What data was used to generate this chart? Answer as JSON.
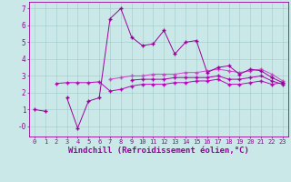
{
  "background_color": "#cbe8e8",
  "grid_color": "#a0c8c8",
  "line_color1": "#990099",
  "line_color2": "#bb00bb",
  "line_color3": "#cc44cc",
  "line_color4": "#aa00aa",
  "xlabel": "Windchill (Refroidissement éolien,°C)",
  "xlabel_fontsize": 6.5,
  "xtick_fontsize": 5.0,
  "ytick_fontsize": 5.5,
  "ylim": [
    -0.6,
    7.4
  ],
  "xlim": [
    -0.5,
    23.5
  ],
  "x": [
    0,
    1,
    2,
    3,
    4,
    5,
    6,
    7,
    8,
    9,
    10,
    11,
    12,
    13,
    14,
    15,
    16,
    17,
    18,
    19,
    20,
    21,
    22,
    23
  ],
  "line1_y": [
    1.0,
    0.9,
    null,
    1.7,
    -0.1,
    1.5,
    1.7,
    6.4,
    7.0,
    5.3,
    4.8,
    4.9,
    5.7,
    4.3,
    5.0,
    5.1,
    3.2,
    3.5,
    3.6,
    3.1,
    3.4,
    3.3,
    2.9,
    2.6
  ],
  "line2_y": [
    null,
    null,
    2.55,
    2.6,
    2.6,
    2.6,
    2.65,
    2.1,
    2.2,
    2.4,
    2.5,
    2.5,
    2.5,
    2.6,
    2.6,
    2.7,
    2.7,
    2.8,
    2.5,
    2.5,
    2.6,
    2.7,
    2.5,
    2.6
  ],
  "line3_y": [
    null,
    null,
    null,
    null,
    null,
    null,
    null,
    2.8,
    2.9,
    3.0,
    3.0,
    3.1,
    3.1,
    3.1,
    3.2,
    3.2,
    3.3,
    3.4,
    3.3,
    3.2,
    3.3,
    3.4,
    3.1,
    2.7
  ],
  "line4_y": [
    null,
    null,
    null,
    null,
    null,
    null,
    null,
    null,
    null,
    2.75,
    2.8,
    2.8,
    2.8,
    2.9,
    2.9,
    2.9,
    2.9,
    3.0,
    2.8,
    2.8,
    2.9,
    3.0,
    2.7,
    2.5
  ]
}
